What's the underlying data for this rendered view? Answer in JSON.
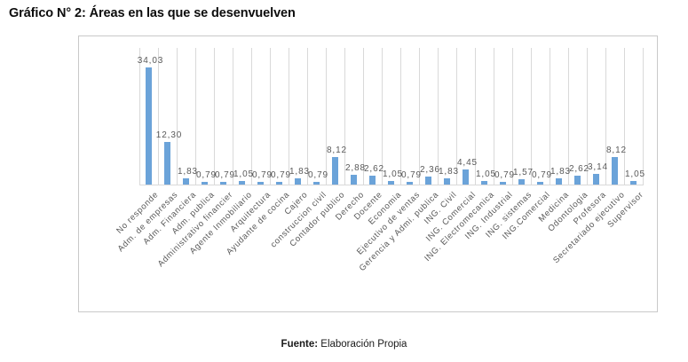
{
  "page": {
    "title": "Gráfico N° 2: Áreas en las que se desenvuelven",
    "footer": {
      "prefix": "Fuente:",
      "text": " Elaboración Propia"
    }
  },
  "chart_data": {
    "type": "bar",
    "title": "Gráfico N° 2: Áreas en las que se desenvuelven",
    "xlabel": "",
    "ylabel": "",
    "ylim": [
      0,
      40
    ],
    "legend": "none",
    "grid": "vertical category gridlines only",
    "data_labels": "value above each bar, comma decimal separator",
    "categories": [
      "No responde",
      "Adm. de empresas",
      "Adm. Financiera",
      "Adm. publica",
      "Administrativo financier",
      "Agente Inmobiliario",
      "Arquitectura",
      "Ayudante de cocina",
      "Cajero",
      "construccion civil",
      "Contador publico",
      "Derecho",
      "Docente",
      "Economia",
      "Ejecutivo de ventas",
      "Gerencia y Admi. publica",
      "ING. Civil",
      "ING. Comercial",
      "ING. Electromecanica",
      "ING. Industrial",
      "ING. sistemas",
      "ING.Comercial",
      "Medicina",
      "Odontologia",
      "Profesora",
      "Secretariado ejecutivo",
      "Supervisor"
    ],
    "values": [
      34.03,
      12.3,
      1.83,
      0.79,
      0.79,
      1.05,
      0.79,
      0.79,
      1.83,
      0.79,
      8.12,
      2.88,
      2.62,
      1.05,
      0.79,
      2.36,
      1.83,
      4.45,
      1.05,
      0.79,
      1.57,
      0.79,
      1.83,
      2.62,
      3.14,
      8.12,
      1.05
    ],
    "value_labels": [
      "34,03",
      "12,30",
      "1,83",
      "0,79",
      "0,79",
      "1,05",
      "0,79",
      "0,79",
      "1,83",
      "0,79",
      "8,12",
      "2,88",
      "2,62",
      "1,05",
      "0,79",
      "2,36",
      "1,83",
      "4,45",
      "1,05",
      "0,79",
      "1,57",
      "0,79",
      "1,83",
      "2,62",
      "3,14",
      "8,12",
      "1,05"
    ],
    "colors": {
      "bar": "#6BA3D9",
      "gridline": "#D9D9D9",
      "label_text": "#595959",
      "frame_border": "#C9C9C9"
    }
  }
}
